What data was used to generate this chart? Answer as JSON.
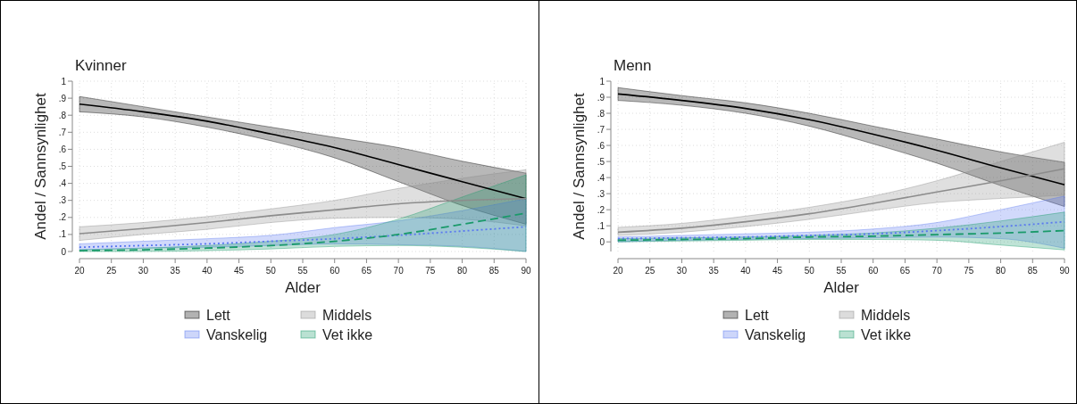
{
  "chart_data": [
    {
      "type": "line",
      "title": "Kvinner",
      "xlabel": "Alder",
      "ylabel": "Andel / Sannsynlighet",
      "x": [
        20,
        30,
        40,
        50,
        60,
        70,
        80,
        90
      ],
      "xlim": [
        20,
        90
      ],
      "xticks": [
        20,
        25,
        30,
        35,
        40,
        45,
        50,
        55,
        60,
        65,
        70,
        75,
        80,
        85,
        90
      ],
      "ylim": [
        0,
        1
      ],
      "yticks": [
        {
          "value": 0,
          "label": "0"
        },
        {
          "value": 0.1,
          "label": ".1"
        },
        {
          "value": 0.2,
          "label": ".2"
        },
        {
          "value": 0.3,
          "label": ".3"
        },
        {
          "value": 0.4,
          "label": ".4"
        },
        {
          "value": 0.5,
          "label": ".5"
        },
        {
          "value": 0.6,
          "label": ".6"
        },
        {
          "value": 0.7,
          "label": ".7"
        },
        {
          "value": 0.8,
          "label": ".8"
        },
        {
          "value": 0.9,
          "label": ".9"
        },
        {
          "value": 1,
          "label": "1"
        }
      ],
      "grid": true,
      "legend": "bottom",
      "series": [
        {
          "name": "Lett",
          "color": "#000000",
          "line_style": "solid",
          "values": [
            0.865,
            0.82,
            0.765,
            0.69,
            0.61,
            0.51,
            0.41,
            0.31
          ],
          "lower": [
            0.82,
            0.79,
            0.73,
            0.65,
            0.55,
            0.41,
            0.27,
            0.16
          ],
          "upper": [
            0.91,
            0.85,
            0.79,
            0.73,
            0.67,
            0.61,
            0.53,
            0.46
          ]
        },
        {
          "name": "Middels",
          "color": "#8c8c8c",
          "line_style": "solid",
          "values": [
            0.105,
            0.135,
            0.17,
            0.21,
            0.245,
            0.28,
            0.3,
            0.31
          ],
          "lower": [
            0.065,
            0.1,
            0.13,
            0.17,
            0.195,
            0.2,
            0.19,
            0.15
          ],
          "upper": [
            0.145,
            0.17,
            0.205,
            0.25,
            0.3,
            0.37,
            0.43,
            0.48
          ]
        },
        {
          "name": "Vanskelig",
          "color": "#5a78f0",
          "line_style": "dotted",
          "values": [
            0.025,
            0.035,
            0.045,
            0.06,
            0.075,
            0.095,
            0.12,
            0.145
          ],
          "lower": [
            0.01,
            0.02,
            0.025,
            0.035,
            0.045,
            0.04,
            0.03,
            0
          ],
          "upper": [
            0.045,
            0.06,
            0.075,
            0.095,
            0.14,
            0.18,
            0.24,
            0.31
          ]
        },
        {
          "name": "Vet ikke",
          "color": "#1a9a6a",
          "line_style": "dashed",
          "values": [
            0.005,
            0.01,
            0.02,
            0.035,
            0.06,
            0.1,
            0.16,
            0.225
          ],
          "lower": [
            0,
            0,
            0.005,
            0.015,
            0.03,
            0.035,
            0.025,
            0
          ],
          "upper": [
            0.01,
            0.02,
            0.035,
            0.06,
            0.1,
            0.19,
            0.32,
            0.45
          ]
        }
      ]
    },
    {
      "type": "line",
      "title": "Menn",
      "xlabel": "Alder",
      "ylabel": "Andel / Sannsynlighet",
      "x": [
        20,
        30,
        40,
        50,
        60,
        70,
        80,
        90
      ],
      "xlim": [
        20,
        90
      ],
      "xticks": [
        20,
        25,
        30,
        35,
        40,
        45,
        50,
        55,
        60,
        65,
        70,
        75,
        80,
        85,
        90
      ],
      "ylim": [
        -0.06,
        1
      ],
      "yticks": [
        {
          "value": 0,
          "label": "0"
        },
        {
          "value": 0.1,
          "label": ".1"
        },
        {
          "value": 0.2,
          "label": ".2"
        },
        {
          "value": 0.3,
          "label": ".3"
        },
        {
          "value": 0.4,
          "label": ".4"
        },
        {
          "value": 0.5,
          "label": ".5"
        },
        {
          "value": 0.6,
          "label": ".6"
        },
        {
          "value": 0.7,
          "label": ".7"
        },
        {
          "value": 0.8,
          "label": ".8"
        },
        {
          "value": 0.9,
          "label": ".9"
        },
        {
          "value": 1,
          "label": "1"
        }
      ],
      "grid": true,
      "legend": "bottom",
      "series": [
        {
          "name": "Lett",
          "color": "#000000",
          "line_style": "solid",
          "values": [
            0.92,
            0.88,
            0.83,
            0.76,
            0.67,
            0.57,
            0.46,
            0.355
          ],
          "lower": [
            0.88,
            0.85,
            0.8,
            0.72,
            0.61,
            0.49,
            0.35,
            0.22
          ],
          "upper": [
            0.96,
            0.91,
            0.865,
            0.8,
            0.72,
            0.64,
            0.56,
            0.495
          ]
        },
        {
          "name": "Middels",
          "color": "#8c8c8c",
          "line_style": "solid",
          "values": [
            0.06,
            0.085,
            0.125,
            0.175,
            0.24,
            0.31,
            0.38,
            0.455
          ],
          "lower": [
            0.04,
            0.06,
            0.095,
            0.14,
            0.195,
            0.245,
            0.27,
            0.29
          ],
          "upper": [
            0.09,
            0.115,
            0.16,
            0.215,
            0.285,
            0.38,
            0.5,
            0.62
          ]
        },
        {
          "name": "Vanskelig",
          "color": "#5a78f0",
          "line_style": "dotted",
          "values": [
            0.02,
            0.025,
            0.03,
            0.04,
            0.05,
            0.07,
            0.095,
            0.125
          ],
          "lower": [
            0,
            0.01,
            0.015,
            0.02,
            0.025,
            0.03,
            0.02,
            -0.04
          ],
          "upper": [
            0.03,
            0.04,
            0.05,
            0.06,
            0.08,
            0.12,
            0.2,
            0.285
          ]
        },
        {
          "name": "Vet ikke",
          "color": "#1a9a6a",
          "line_style": "dashed",
          "values": [
            0.01,
            0.015,
            0.02,
            0.03,
            0.035,
            0.045,
            0.055,
            0.07
          ],
          "lower": [
            0,
            0.005,
            0.01,
            0.015,
            0.015,
            0.01,
            -0.02,
            -0.05
          ],
          "upper": [
            0.02,
            0.025,
            0.03,
            0.04,
            0.055,
            0.085,
            0.13,
            0.185
          ]
        }
      ]
    }
  ]
}
